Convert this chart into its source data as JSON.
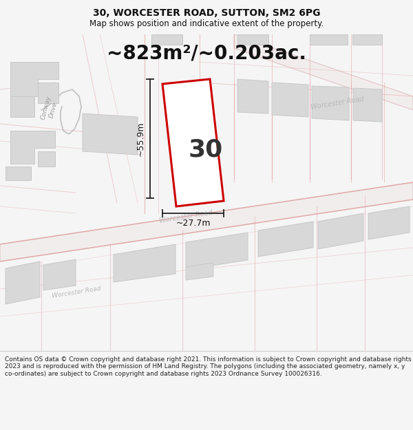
{
  "title_line1": "30, WORCESTER ROAD, SUTTON, SM2 6PG",
  "title_line2": "Map shows position and indicative extent of the property.",
  "area_text": "~823m²/~0.203ac.",
  "label_30": "30",
  "dim_height": "~55.9m",
  "dim_width": "~27.7m",
  "footer_text": "Contains OS data © Crown copyright and database right 2021. This information is subject to Crown copyright and database rights 2023 and is reproduced with the permission of HM Land Registry. The polygons (including the associated geometry, namely x, y co-ordinates) are subject to Crown copyright and database rights 2023 Ordnance Survey 100026316.",
  "bg_color": "#f5f5f5",
  "map_bg": "#f8f8f8",
  "road_line_color": "#e09898",
  "building_fill": "#d8d8d8",
  "building_edge": "#c8c8c8",
  "property_fill": "#ffffff",
  "property_edge": "#cc0000",
  "dim_line_color": "#222222",
  "text_color": "#111111",
  "street_label_color": "#aaaaaa",
  "title_fontsize": 10,
  "subtitle_fontsize": 8.5,
  "area_fontsize": 20,
  "label_fontsize": 26,
  "dim_fontsize": 9,
  "footer_fontsize": 6.5
}
